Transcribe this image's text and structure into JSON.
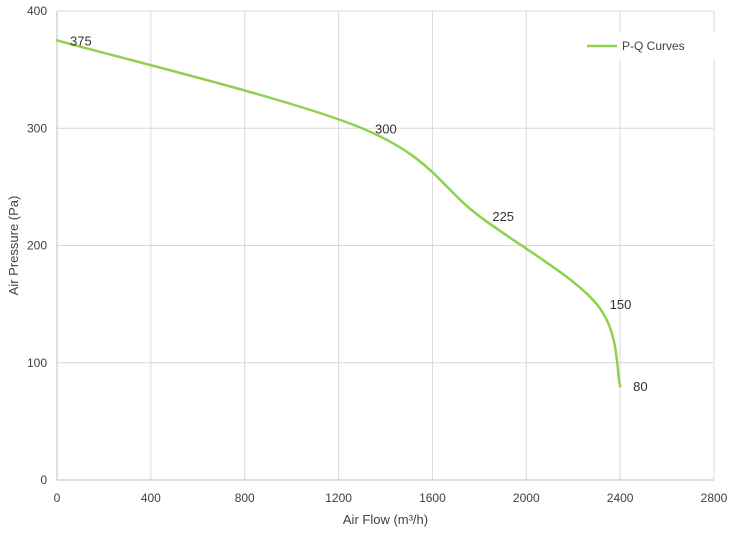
{
  "chart_data": {
    "type": "line",
    "title": "",
    "xlabel": "Air Flow  (m³/h)",
    "ylabel": "Air Pressure  (Pa)",
    "xlim": [
      0,
      2800
    ],
    "ylim": [
      0,
      400
    ],
    "x_ticks": [
      "0",
      "400",
      "800",
      "1200",
      "1600",
      "2000",
      "2400",
      "2800"
    ],
    "y_ticks": [
      "0",
      "100",
      "200",
      "300",
      "400"
    ],
    "grid": true,
    "legend": "top-right",
    "series": [
      {
        "name": "P-Q Curves",
        "color": "#8fd14f",
        "points": [
          {
            "x": 0,
            "y": 375,
            "label": "375"
          },
          {
            "x": 1300,
            "y": 300,
            "label": "300"
          },
          {
            "x": 1800,
            "y": 225,
            "label": "225"
          },
          {
            "x": 2300,
            "y": 150,
            "label": "150"
          },
          {
            "x": 2400,
            "y": 80,
            "label": "80"
          }
        ]
      }
    ]
  }
}
